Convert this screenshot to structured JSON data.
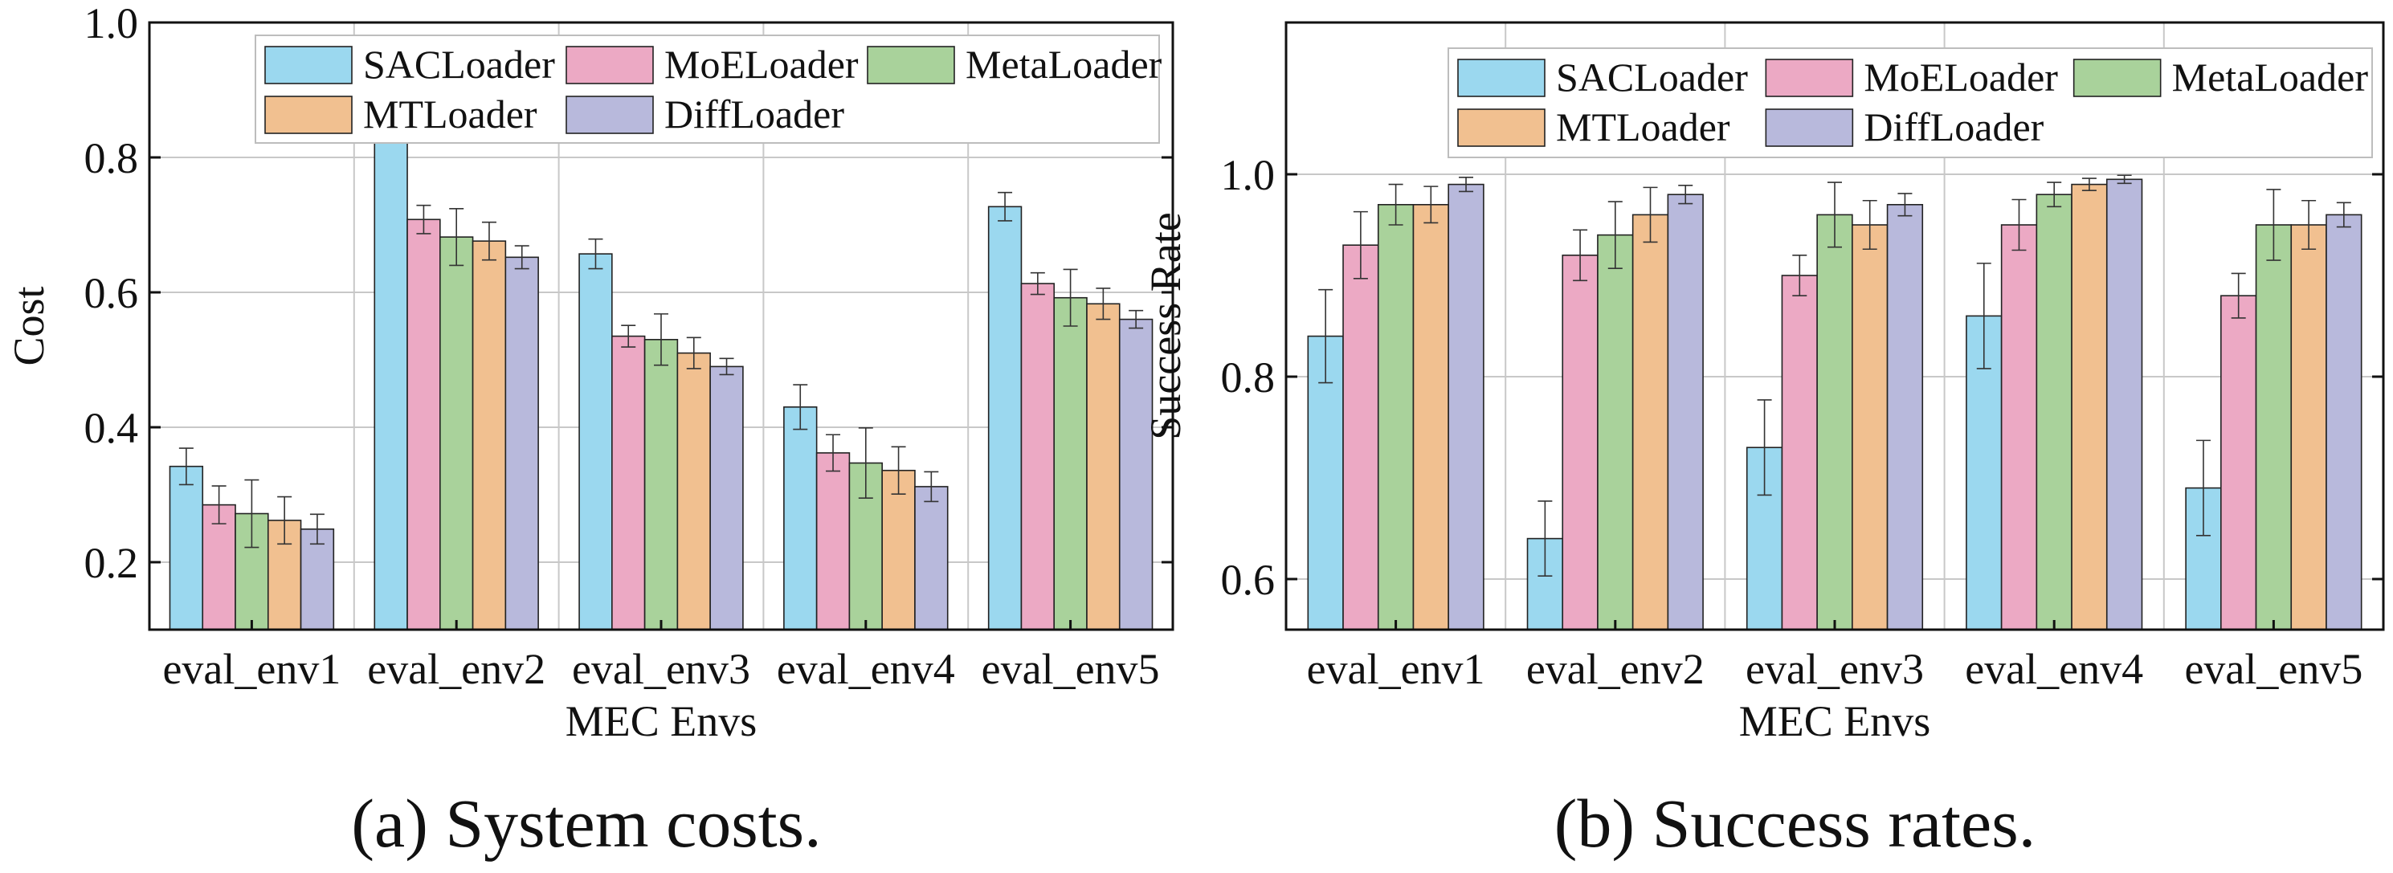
{
  "colors": {
    "SACLoader": "#9bd8ef",
    "MoELoader": "#eca9c4",
    "MetaLoader": "#a9d29b",
    "MTLoader": "#f1c090",
    "DiffLoader": "#b8b9dc",
    "grid": "#c8c8c8",
    "axis": "#111111"
  },
  "captions": {
    "a": "(a) System costs.",
    "b": "(b) Success rates."
  },
  "chart_data": [
    {
      "type": "bar",
      "title": "",
      "xlabel": "MEC Envs",
      "ylabel": "Cost",
      "categories": [
        "eval_env1",
        "eval_env2",
        "eval_env3",
        "eval_env4",
        "eval_env5"
      ],
      "ylim": [
        0.1,
        1.0
      ],
      "yticks": [
        0.2,
        0.4,
        0.6,
        0.8,
        1.0
      ],
      "ytick_labels": [
        "0.2",
        "0.4",
        "0.6",
        "0.8",
        "1.0"
      ],
      "grid": true,
      "legend": "top-right",
      "legend_rows": [
        [
          "SACLoader",
          "MoELoader",
          "MetaLoader"
        ],
        [
          "MTLoader",
          "DiffLoader"
        ]
      ],
      "series": [
        {
          "name": "SACLoader",
          "values": [
            0.342,
            0.865,
            0.657,
            0.43,
            0.727
          ],
          "errors": [
            0.027,
            0.018,
            0.022,
            0.033,
            0.021
          ]
        },
        {
          "name": "MoELoader",
          "values": [
            0.285,
            0.708,
            0.535,
            0.362,
            0.613
          ],
          "errors": [
            0.028,
            0.021,
            0.016,
            0.027,
            0.016
          ]
        },
        {
          "name": "MetaLoader",
          "values": [
            0.272,
            0.682,
            0.53,
            0.347,
            0.592
          ],
          "errors": [
            0.05,
            0.042,
            0.038,
            0.052,
            0.042
          ]
        },
        {
          "name": "MTLoader",
          "values": [
            0.262,
            0.676,
            0.51,
            0.336,
            0.583
          ],
          "errors": [
            0.035,
            0.028,
            0.023,
            0.035,
            0.023
          ]
        },
        {
          "name": "DiffLoader",
          "values": [
            0.249,
            0.652,
            0.49,
            0.312,
            0.56
          ],
          "errors": [
            0.022,
            0.017,
            0.012,
            0.022,
            0.013
          ]
        }
      ]
    },
    {
      "type": "bar",
      "title": "",
      "xlabel": "MEC Envs",
      "ylabel": "Success Rate",
      "categories": [
        "eval_env1",
        "eval_env2",
        "eval_env3",
        "eval_env4",
        "eval_env5"
      ],
      "ylim": [
        0.55,
        1.15
      ],
      "yticks": [
        0.6,
        0.8,
        1.0
      ],
      "ytick_labels": [
        "0.6",
        "0.8",
        "1.0"
      ],
      "grid": true,
      "legend": "top-right",
      "legend_rows": [
        [
          "SACLoader",
          "MoELoader",
          "MetaLoader"
        ],
        [
          "MTLoader",
          "DiffLoader"
        ]
      ],
      "series": [
        {
          "name": "SACLoader",
          "values": [
            0.84,
            0.64,
            0.73,
            0.86,
            0.69
          ],
          "errors": [
            0.046,
            0.037,
            0.047,
            0.052,
            0.047
          ]
        },
        {
          "name": "MoELoader",
          "values": [
            0.93,
            0.92,
            0.9,
            0.95,
            0.88
          ],
          "errors": [
            0.033,
            0.025,
            0.02,
            0.025,
            0.022
          ]
        },
        {
          "name": "MetaLoader",
          "values": [
            0.97,
            0.94,
            0.96,
            0.98,
            0.95
          ],
          "errors": [
            0.02,
            0.033,
            0.032,
            0.012,
            0.035
          ]
        },
        {
          "name": "MTLoader",
          "values": [
            0.97,
            0.96,
            0.95,
            0.99,
            0.95
          ],
          "errors": [
            0.018,
            0.027,
            0.024,
            0.006,
            0.024
          ]
        },
        {
          "name": "DiffLoader",
          "values": [
            0.99,
            0.98,
            0.97,
            0.995,
            0.96
          ],
          "errors": [
            0.007,
            0.009,
            0.011,
            0.004,
            0.012
          ]
        }
      ]
    }
  ]
}
